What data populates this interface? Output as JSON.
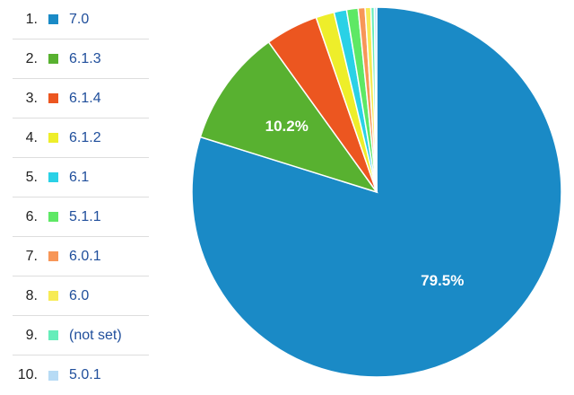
{
  "chart_data": {
    "type": "pie",
    "categories": [
      "7.0",
      "6.1.3",
      "6.1.4",
      "6.1.2",
      "6.1",
      "5.1.1",
      "6.0.1",
      "6.0",
      "(not set)",
      "5.0.1"
    ],
    "ranks": [
      "1.",
      "2.",
      "3.",
      "4.",
      "5.",
      "6.",
      "7.",
      "8.",
      "9.",
      "10."
    ],
    "values": [
      79.5,
      10.2,
      4.6,
      1.6,
      1.1,
      1.0,
      0.6,
      0.5,
      0.3,
      0.2
    ],
    "labels": [
      "79.5%",
      "10.2%",
      "",
      "",
      "",
      "",
      "",
      "",
      "",
      ""
    ],
    "colors": [
      "#1a8ac6",
      "#58b130",
      "#ec5620",
      "#eeee2a",
      "#2ad1e6",
      "#5ee865",
      "#f79657",
      "#f7eb55",
      "#66edba",
      "#b7dbf5"
    ],
    "legend": "left",
    "title": ""
  }
}
